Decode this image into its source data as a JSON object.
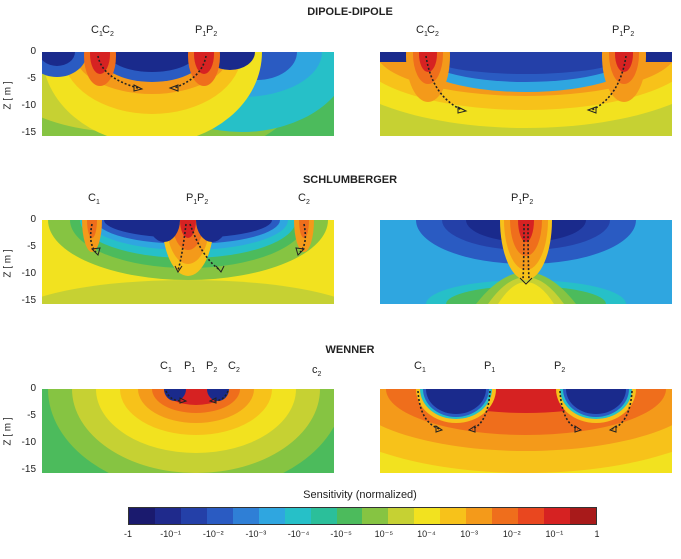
{
  "titles": {
    "dipole": "DIPOLE-DIPOLE",
    "schlumberger": "SCHLUMBERGER",
    "wenner": "WENNER"
  },
  "axis": {
    "ylabel": "Z [ m ]",
    "yticks": [
      "0",
      "-5",
      "-10",
      "-15"
    ]
  },
  "electrodes": {
    "c1": "C",
    "c2": "C",
    "p1": "P",
    "p2": "P",
    "lower_c2": "c",
    "sub1": "1",
    "sub2": "2"
  },
  "colorbar": {
    "title": "Sensitivity (normalized)",
    "ticks": [
      "-1",
      "-10⁻¹",
      "-10⁻²",
      "-10⁻³",
      "-10⁻⁴",
      "-10⁻⁵",
      "10⁻⁵",
      "10⁻⁴",
      "10⁻³",
      "10⁻²",
      "10⁻¹",
      "1"
    ],
    "colors": [
      "#1a1a6e",
      "#1f2a8c",
      "#2440a8",
      "#2a5bc2",
      "#2f7fd6",
      "#2fa6e0",
      "#26c0c8",
      "#2bbf9a",
      "#4cbb5c",
      "#86c442",
      "#c6d133",
      "#f2e21f",
      "#f7c21a",
      "#f49a1a",
      "#ef6e1c",
      "#e9471f",
      "#d62222",
      "#a81a1a"
    ]
  },
  "colors": {
    "deep_blue": "#1a2a8c",
    "mid_blue": "#2f7fd6",
    "light_blue": "#2fa6e0",
    "green": "#4cbb5c",
    "yellow": "#f2e21f",
    "orange": "#f49a1a",
    "red": "#d62222"
  }
}
